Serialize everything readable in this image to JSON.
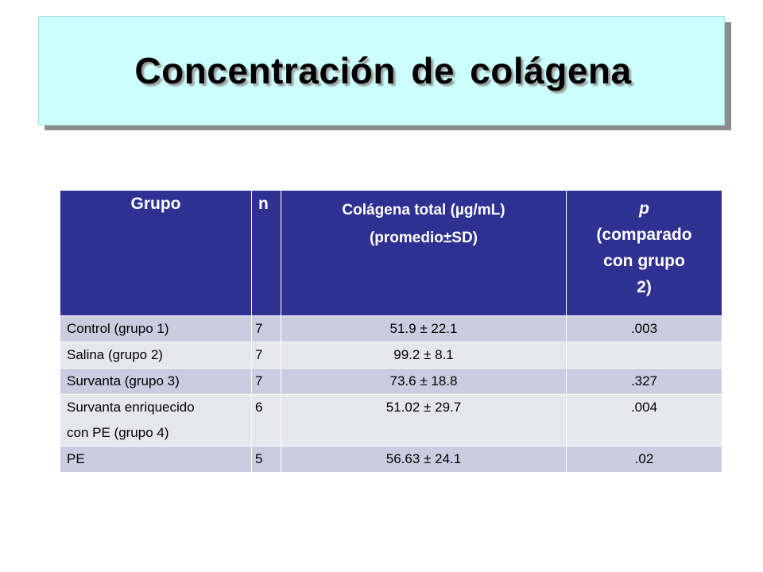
{
  "title": "Concentración de colágena",
  "table": {
    "headers": {
      "grupo": "Grupo",
      "n": "n",
      "colagena_line1": "Colágena total (µg/mL)",
      "colagena_line2": "(promedio±SD)",
      "p_symbol": "p",
      "p_line1": "(comparado",
      "p_line2": "con grupo",
      "p_line3": "2)"
    },
    "rows": [
      {
        "grupo": "Control (grupo 1)",
        "grupo_line2": "",
        "n": "7",
        "colagena": "51.9 ± 22.1",
        "p": ".003"
      },
      {
        "grupo": "Salina (grupo 2)",
        "grupo_line2": "",
        "n": "7",
        "colagena": "99.2 ± 8.1",
        "p": ""
      },
      {
        "grupo": "Survanta (grupo 3)",
        "grupo_line2": "",
        "n": "7",
        "colagena": "73.6 ± 18.8",
        "p": ".327"
      },
      {
        "grupo": "Survanta enriquecido",
        "grupo_line2": "con PE (grupo 4)",
        "n": "6",
        "colagena": "51.02 ± 29.7",
        "p": ".004"
      },
      {
        "grupo": "PE",
        "grupo_line2": "",
        "n": "5",
        "colagena": "56.63 ± 24.1",
        "p": ".02"
      }
    ]
  },
  "colors": {
    "title_background": "#ccffff",
    "header_background": "#2e3192",
    "row_odd": "#cccce0",
    "row_even": "#e6e6ee"
  }
}
